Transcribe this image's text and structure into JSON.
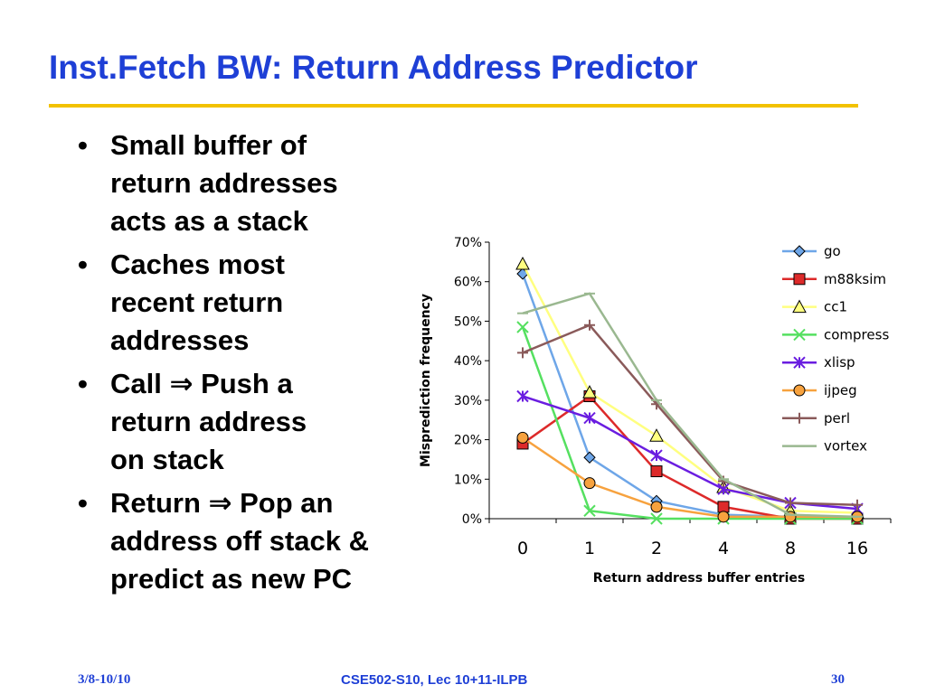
{
  "slide": {
    "title": "Inst.Fetch BW: Return Address Predictor",
    "bullets": [
      {
        "lines": [
          "Small buffer of",
          "return addresses",
          "acts as a stack"
        ]
      },
      {
        "lines": [
          "Caches most",
          "recent return",
          "addresses"
        ]
      },
      {
        "lines": [
          "Call ",
          " Push a",
          "return address",
          "on stack"
        ],
        "arrow": "⇒"
      },
      {
        "lines": [
          "Return ",
          " Pop an",
          "address off stack &",
          "predict as new PC"
        ],
        "arrow": "⇒"
      }
    ],
    "bullet_glyph": "•",
    "accent_color": "#1e3fd6",
    "rule_color": "#f2c200"
  },
  "footer": {
    "left": "3/8-10/10",
    "center": "CSE502-S10, Lec 10+11-ILPB",
    "right": "30"
  },
  "chart_data": {
    "type": "line",
    "title": "",
    "xlabel": "Return address buffer entries",
    "ylabel": "Misprediction frequency",
    "categories": [
      "0",
      "1",
      "2",
      "4",
      "8",
      "16"
    ],
    "ylim": [
      0,
      70
    ],
    "yticks": [
      0,
      10,
      20,
      30,
      40,
      50,
      60,
      70
    ],
    "ytick_labels": [
      "0%",
      "10%",
      "20%",
      "30%",
      "40%",
      "50%",
      "60%",
      "70%"
    ],
    "grid": false,
    "legend": "top-right",
    "series": [
      {
        "name": "go",
        "color": "#6ea6e8",
        "marker": "diamond",
        "values": [
          62,
          15.5,
          4.5,
          1,
          0.5,
          0.5
        ]
      },
      {
        "name": "m88ksim",
        "color": "#dd2a2a",
        "marker": "square",
        "values": [
          19,
          31,
          12,
          3,
          0,
          0
        ]
      },
      {
        "name": "cc1",
        "color": "#ffff80",
        "marker": "triangle",
        "values": [
          64.5,
          32,
          21,
          8,
          2,
          1.5
        ]
      },
      {
        "name": "compress",
        "color": "#55e060",
        "marker": "x",
        "values": [
          48.5,
          2,
          0,
          0,
          0,
          0
        ]
      },
      {
        "name": "xlisp",
        "color": "#6a1de0",
        "marker": "star",
        "values": [
          31,
          25.5,
          16,
          7.5,
          4,
          2.5
        ]
      },
      {
        "name": "ijpeg",
        "color": "#f7a23e",
        "marker": "circle",
        "values": [
          20.5,
          9,
          3,
          0.5,
          0.5,
          0.5
        ]
      },
      {
        "name": "perl",
        "color": "#8a5a5a",
        "marker": "plus",
        "values": [
          42,
          49,
          29,
          9.5,
          4,
          3.5
        ]
      },
      {
        "name": "vortex",
        "color": "#9ab890",
        "marker": "dash",
        "values": [
          52,
          57,
          30,
          10,
          1,
          0.5
        ]
      }
    ]
  }
}
